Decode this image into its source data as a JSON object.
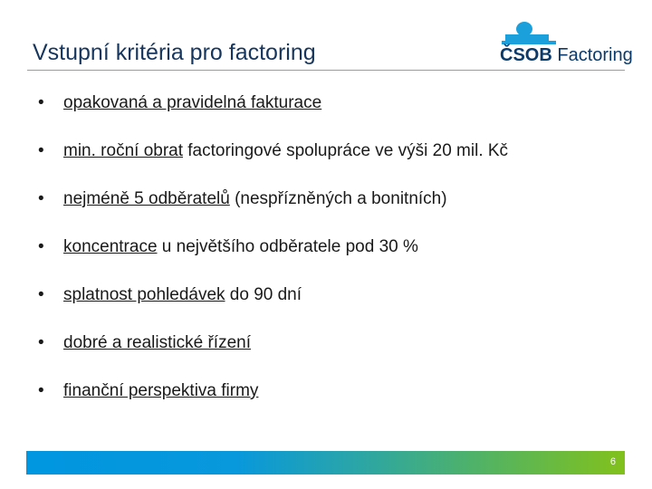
{
  "title": "Vstupní kritéria pro factoring",
  "logo": {
    "brand": "ČSOB",
    "product": "Factoring"
  },
  "bullets": [
    {
      "underlined": "opakovaná a pravidelná fakturace",
      "rest": ""
    },
    {
      "underlined": "min. roční obrat",
      "rest": " factoringové spolupráce ve výši 20 mil. Kč"
    },
    {
      "underlined": "nejméně 5 odběratelů",
      "rest": " (nespřízněných a bonitních)"
    },
    {
      "underlined": "koncentrace",
      "rest": " u největšího odběratele pod 30 %"
    },
    {
      "underlined": "splatnost pohledávek",
      "rest": " do 90 dní"
    },
    {
      "underlined": "dobré a realistické řízení",
      "rest": ""
    },
    {
      "underlined": "finanční perspektiva firmy",
      "rest": ""
    }
  ],
  "bullet_symbol": "•",
  "footer": {
    "page_number": "6"
  },
  "colors": {
    "title": "#17365d",
    "footer_start": "#0096e0",
    "footer_end": "#82c11c"
  }
}
